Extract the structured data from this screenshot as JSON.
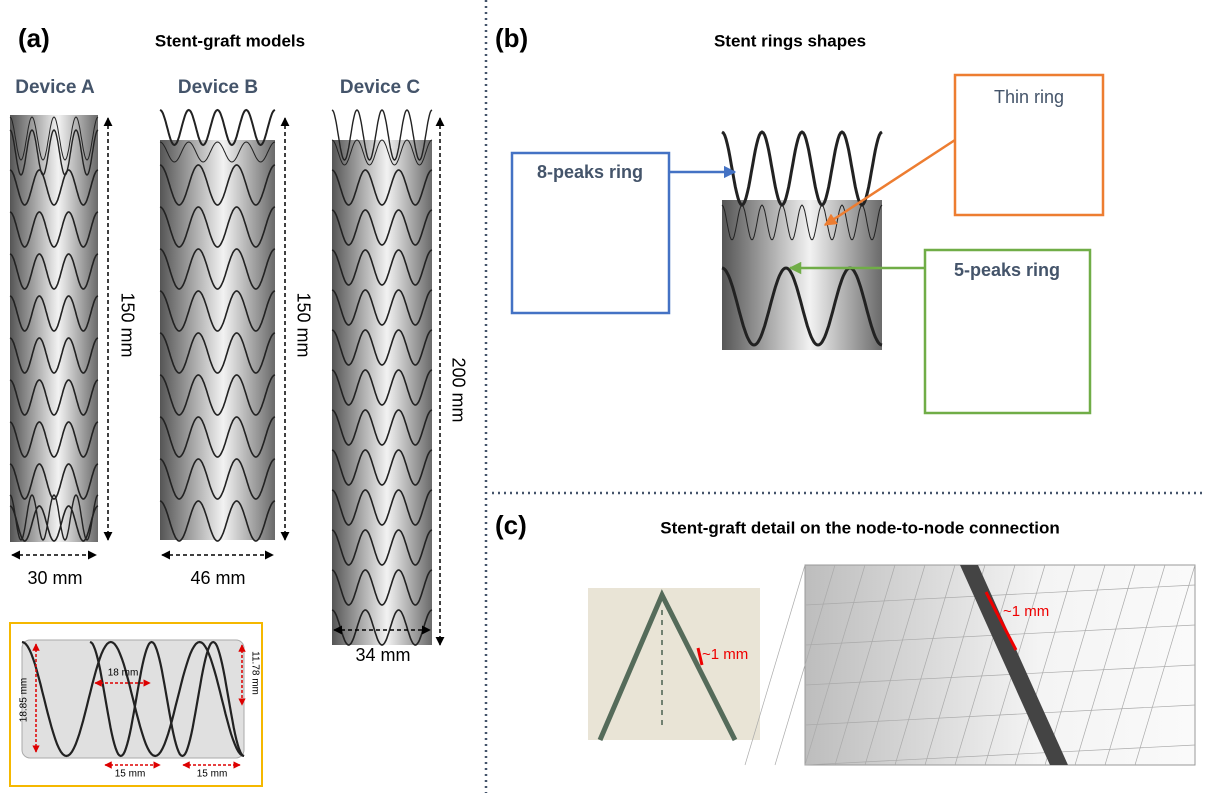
{
  "panel_a": {
    "label": "(a)",
    "title": "Stent-graft models",
    "devices": [
      {
        "name": "Device A",
        "length": "150 mm",
        "diameter": "30 mm"
      },
      {
        "name": "Device B",
        "length": "150 mm",
        "diameter": "46 mm"
      },
      {
        "name": "Device C",
        "length": "200 mm",
        "diameter": "34 mm"
      }
    ],
    "inset": {
      "height_label": "18.85 mm",
      "gap_label": "18 mm",
      "ring_height_label": "11.78 mm",
      "width_label_1": "15 mm",
      "width_label_2": "15 mm"
    }
  },
  "panel_b": {
    "label": "(b)",
    "title": "Stent rings shapes",
    "callouts": [
      "8-peaks ring",
      "Thin ring",
      "5-peaks ring"
    ]
  },
  "panel_c": {
    "label": "(c)",
    "title": "Stent-graft detail on the node-to-node connection",
    "photo_label": "~1 mm",
    "mesh_label": "~1 mm"
  }
}
